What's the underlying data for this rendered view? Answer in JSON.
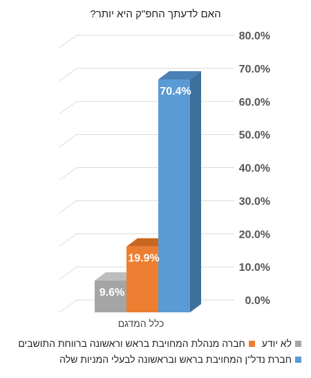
{
  "chart_data": {
    "type": "bar",
    "title": "האם לדעתך החפ\"ק היא יותר?",
    "categories": [
      "כלל המדגם"
    ],
    "series": [
      {
        "name": "לא יודע",
        "values": [
          9.6
        ],
        "label": "9.6%",
        "color": "#a5a5a5",
        "side": "#8a8a8a",
        "top": "#bdbdbd"
      },
      {
        "name": "חברה מנהלת המחויבת בראש וראשונה ברווחת התושבים",
        "values": [
          19.9
        ],
        "label": "19.9%",
        "color": "#ed7d31",
        "side": "#b85e20",
        "top": "#c9661f"
      },
      {
        "name": "חברת נדל\"ן המחויבת בראש ובראשונה לבעלי המניות שלה",
        "values": [
          70.4
        ],
        "label": "70.4%",
        "color": "#5b9bd5",
        "side": "#3d6f9c",
        "top": "#4a80b6"
      }
    ],
    "ylim": [
      0,
      80
    ],
    "yticks": [
      "0.0%",
      "10.0%",
      "20.0%",
      "30.0%",
      "40.0%",
      "50.0%",
      "60.0%",
      "70.0%",
      "80.0%"
    ],
    "grid": true,
    "legend_position": "bottom"
  }
}
